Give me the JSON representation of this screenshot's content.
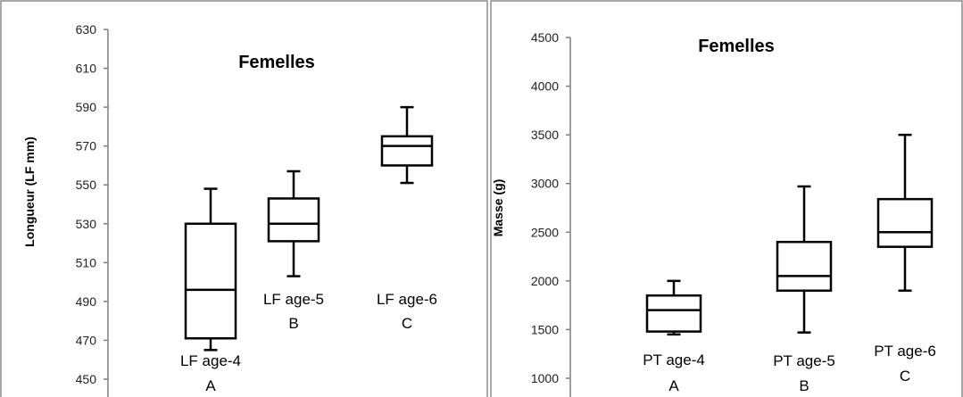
{
  "chart_data": [
    {
      "type": "box",
      "title": "Femelles",
      "ylabel": "Longueur (LF mm)",
      "ylim": [
        450,
        630
      ],
      "yticks": [
        450,
        470,
        490,
        510,
        530,
        550,
        570,
        590,
        610,
        630
      ],
      "grid": false,
      "series": [
        {
          "name": "LF age-4",
          "group": "A",
          "min": 465,
          "q1": 471,
          "median": 496,
          "q3": 530,
          "max": 548
        },
        {
          "name": "LF age-5",
          "group": "B",
          "min": 503,
          "q1": 521,
          "median": 530,
          "q3": 543,
          "max": 557
        },
        {
          "name": "LF age-6",
          "group": "C",
          "min": 551,
          "q1": 560,
          "median": 570,
          "q3": 575,
          "max": 590
        }
      ]
    },
    {
      "type": "box",
      "title": "Femelles",
      "ylabel": "Masse (g)",
      "ylim": [
        1000,
        4500
      ],
      "yticks": [
        1000,
        1500,
        2000,
        2500,
        3000,
        3500,
        4000,
        4500
      ],
      "grid": false,
      "series": [
        {
          "name": "PT age-4",
          "group": "A",
          "min": 1450,
          "q1": 1480,
          "median": 1700,
          "q3": 1850,
          "max": 2000
        },
        {
          "name": "PT age-5",
          "group": "B",
          "min": 1470,
          "q1": 1900,
          "median": 2050,
          "q3": 2400,
          "max": 2970
        },
        {
          "name": "PT age-6",
          "group": "C",
          "min": 1900,
          "q1": 2350,
          "median": 2500,
          "q3": 2840,
          "max": 3500
        }
      ]
    }
  ]
}
